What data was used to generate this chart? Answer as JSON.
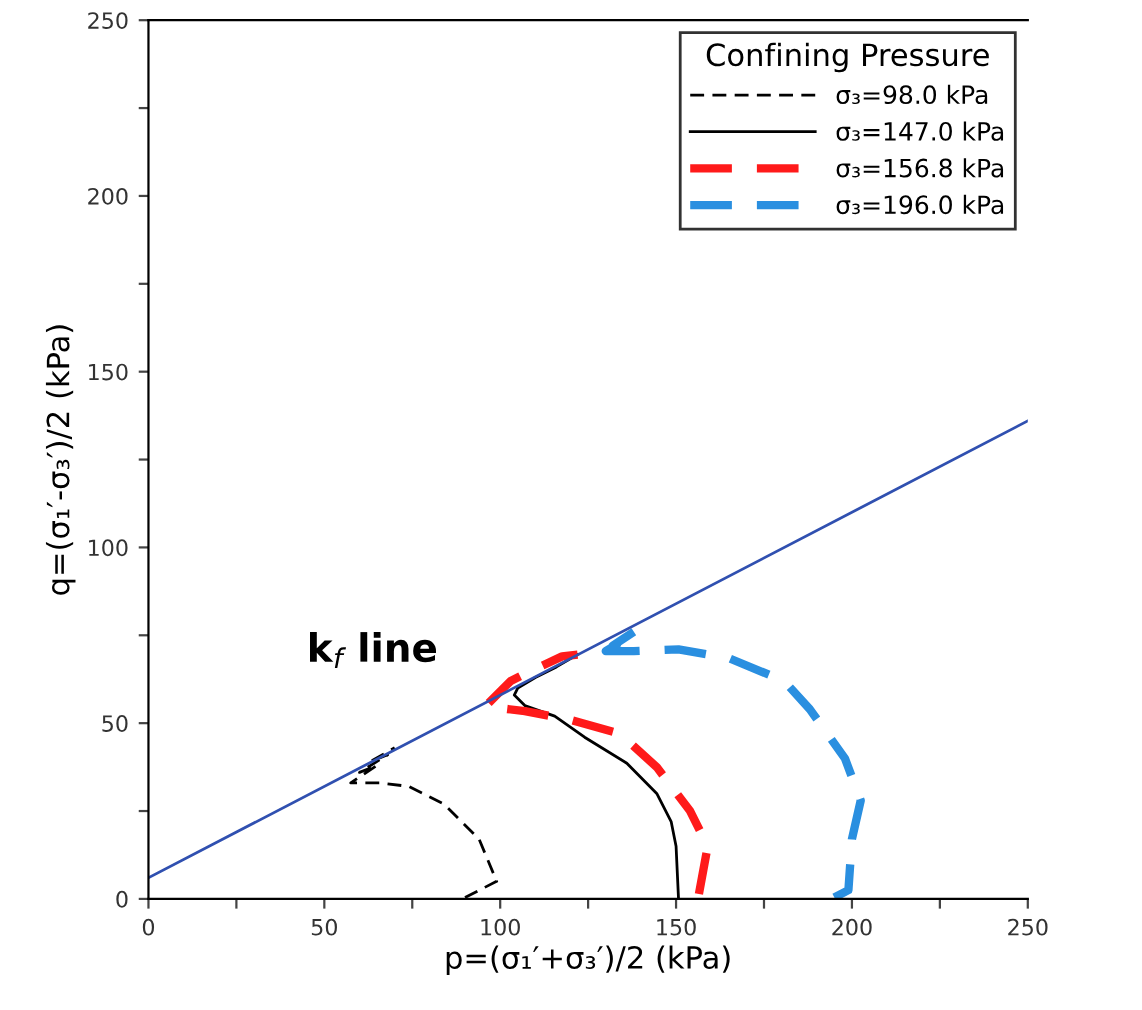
{
  "chart_data": {
    "type": "line",
    "xlabel": "p=(σ₁′+σ₃′)/2 (kPa)",
    "ylabel": "q=(σ₁′-σ₃′)/2 (kPa)",
    "legend_title": "Confining Pressure",
    "legend": "top right",
    "grid": false,
    "xlim": [
      0,
      250
    ],
    "ylim": [
      0,
      250
    ],
    "xticks": [
      0,
      {
        "value": 25,
        "label": null
      },
      50,
      {
        "value": 75,
        "label": null
      },
      100,
      {
        "value": 125,
        "label": null
      },
      150,
      {
        "value": 175,
        "label": null
      },
      200,
      {
        "value": 225,
        "label": null
      },
      250
    ],
    "yticks": [
      0,
      {
        "value": 25,
        "label": null
      },
      50,
      {
        "value": 75,
        "label": null
      },
      100,
      {
        "value": 125,
        "label": null
      },
      150,
      {
        "value": 175,
        "label": null
      },
      200,
      {
        "value": 225,
        "label": null
      },
      250
    ],
    "annotations": [
      "k$_{f}$ line"
    ],
    "series": [
      {
        "name": "σ₃=98.0 kPa",
        "color": "#000000",
        "line_style": "dashed",
        "x": [
          90,
          99,
          94,
          84,
          74,
          66,
          57.5,
          65,
          60,
          68,
          63,
          70
        ],
        "values": [
          0.4,
          5,
          17,
          27,
          32,
          33,
          33,
          38,
          36,
          41,
          39,
          43
        ]
      },
      {
        "name": "σ₃=147.0 kPa",
        "color": "#000000",
        "line_style": "solid",
        "x": [
          150.7,
          150,
          148.6,
          144.5,
          136,
          124,
          115.5,
          107,
          104,
          105,
          110,
          116,
          122
        ],
        "values": [
          0,
          15,
          22,
          30,
          38.6,
          46,
          52,
          55,
          58,
          60,
          63,
          66,
          69.5
        ]
      },
      {
        "name": "σ₃=156.8 kPa",
        "color": "#ff1a1a",
        "line_style": "dashed",
        "x": [
          156.5,
          159,
          154,
          144.5,
          134,
          119.7,
          107,
          99,
          96,
          103,
          109,
          117.6,
          122
        ],
        "values": [
          1.4,
          15,
          25,
          37.5,
          47,
          51,
          53.4,
          54.4,
          55,
          62,
          65,
          69,
          69.5
        ]
      },
      {
        "name": "σ₃=196.0 kPa",
        "color": "#2a8fe0",
        "line_style": "dashed",
        "x": [
          195,
          199,
          200,
          202.5,
          198,
          188,
          180.7,
          165,
          150.7,
          138,
          130,
          136,
          132,
          138
        ],
        "values": [
          0.4,
          2.5,
          17,
          28,
          40,
          54,
          62,
          68.5,
          71,
          70.5,
          70.5,
          74,
          72,
          76
        ]
      },
      {
        "color": "#3050b0",
        "line_style": "solid",
        "x": [
          0,
          250
        ],
        "values": [
          6,
          136
        ]
      }
    ]
  }
}
